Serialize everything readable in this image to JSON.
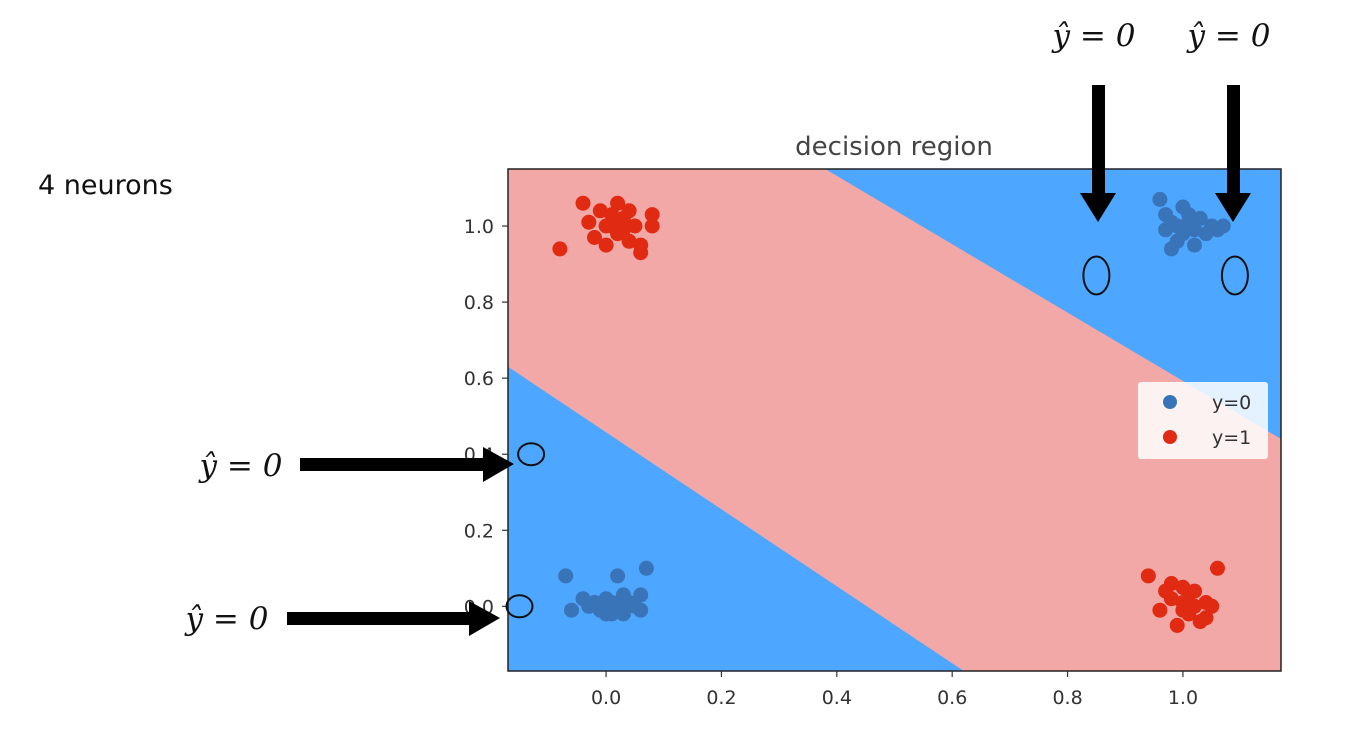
{
  "side_label": "4 neurons",
  "annotations": [
    {
      "label": "ŷ = 0"
    },
    {
      "label": "ŷ = 0"
    },
    {
      "label": "ŷ = 0"
    },
    {
      "label": "ŷ = 0"
    }
  ],
  "chart_data": {
    "type": "scatter",
    "title": "decision region",
    "xlabel": "",
    "ylabel": "",
    "xlim": [
      -0.17,
      1.17
    ],
    "ylim": [
      -0.17,
      1.15
    ],
    "xticks": [
      "0.0",
      "0.2",
      "0.4",
      "0.6",
      "0.8",
      "1.0"
    ],
    "yticks": [
      "0.0",
      "0.2",
      "0.4",
      "0.6",
      "0.8",
      "1.0"
    ],
    "legend_position": "center-right",
    "grid": false,
    "colors": {
      "region_y0": "#4da6ff",
      "region_y1": "#f2a8a6",
      "y0": "#3a74b8",
      "y1": "#e02a12"
    },
    "decision_band": {
      "lower_boundary": [
        [
          -0.17,
          0.63
        ],
        [
          0.62,
          -0.17
        ]
      ],
      "upper_boundary": [
        [
          0.38,
          1.15
        ],
        [
          1.17,
          0.44
        ]
      ]
    },
    "series": [
      {
        "name": "y=0",
        "points": [
          [
            -0.07,
            0.08
          ],
          [
            -0.06,
            -0.01
          ],
          [
            -0.04,
            0.02
          ],
          [
            -0.03,
            0.0
          ],
          [
            -0.02,
            0.01
          ],
          [
            -0.01,
            -0.01
          ],
          [
            0.0,
            0.0
          ],
          [
            0.0,
            0.02
          ],
          [
            0.01,
            -0.02
          ],
          [
            0.01,
            0.01
          ],
          [
            0.02,
            0.08
          ],
          [
            0.02,
            0.0
          ],
          [
            0.03,
            0.03
          ],
          [
            0.03,
            -0.02
          ],
          [
            0.04,
            0.01
          ],
          [
            0.05,
            0.0
          ],
          [
            0.06,
            -0.01
          ],
          [
            0.06,
            0.03
          ],
          [
            0.07,
            0.1
          ],
          [
            0.0,
            -0.02
          ],
          [
            0.96,
            1.07
          ],
          [
            0.97,
            1.03
          ],
          [
            0.97,
            0.99
          ],
          [
            0.98,
            1.01
          ],
          [
            0.99,
            0.96
          ],
          [
            0.99,
            1.0
          ],
          [
            1.0,
            1.05
          ],
          [
            1.0,
            0.98
          ],
          [
            1.01,
            1.01
          ],
          [
            1.02,
            0.99
          ],
          [
            1.02,
            0.95
          ],
          [
            1.03,
            1.02
          ],
          [
            1.04,
            0.98
          ],
          [
            1.05,
            1.0
          ],
          [
            1.06,
            0.99
          ],
          [
            1.07,
            1.0
          ],
          [
            0.98,
            0.94
          ],
          [
            1.01,
            1.03
          ]
        ]
      },
      {
        "name": "y=1",
        "points": [
          [
            -0.08,
            0.94
          ],
          [
            -0.04,
            1.06
          ],
          [
            -0.03,
            1.01
          ],
          [
            -0.02,
            0.97
          ],
          [
            -0.01,
            1.04
          ],
          [
            0.0,
            1.0
          ],
          [
            0.0,
            0.95
          ],
          [
            0.01,
            1.03
          ],
          [
            0.01,
            1.0
          ],
          [
            0.02,
            0.98
          ],
          [
            0.02,
            1.06
          ],
          [
            0.03,
            1.02
          ],
          [
            0.03,
            0.99
          ],
          [
            0.04,
            1.04
          ],
          [
            0.04,
            0.96
          ],
          [
            0.05,
            1.0
          ],
          [
            0.06,
            0.93
          ],
          [
            0.06,
            0.95
          ],
          [
            0.08,
            1.0
          ],
          [
            0.08,
            1.03
          ],
          [
            0.94,
            0.08
          ],
          [
            0.96,
            -0.01
          ],
          [
            0.97,
            0.04
          ],
          [
            0.98,
            0.02
          ],
          [
            0.98,
            0.06
          ],
          [
            0.99,
            -0.05
          ],
          [
            1.0,
            0.05
          ],
          [
            1.0,
            0.01
          ],
          [
            1.01,
            -0.02
          ],
          [
            1.01,
            0.03
          ],
          [
            1.02,
            0.0
          ],
          [
            1.02,
            0.04
          ],
          [
            1.03,
            -0.04
          ],
          [
            1.04,
            0.01
          ],
          [
            1.04,
            -0.03
          ],
          [
            1.05,
            0.0
          ],
          [
            1.06,
            0.1
          ],
          [
            1.0,
            -0.01
          ]
        ]
      }
    ],
    "highlighted_points": [
      [
        0.85,
        0.87
      ],
      [
        1.09,
        0.87
      ],
      [
        -0.13,
        0.4
      ],
      [
        -0.15,
        0.0
      ]
    ]
  }
}
